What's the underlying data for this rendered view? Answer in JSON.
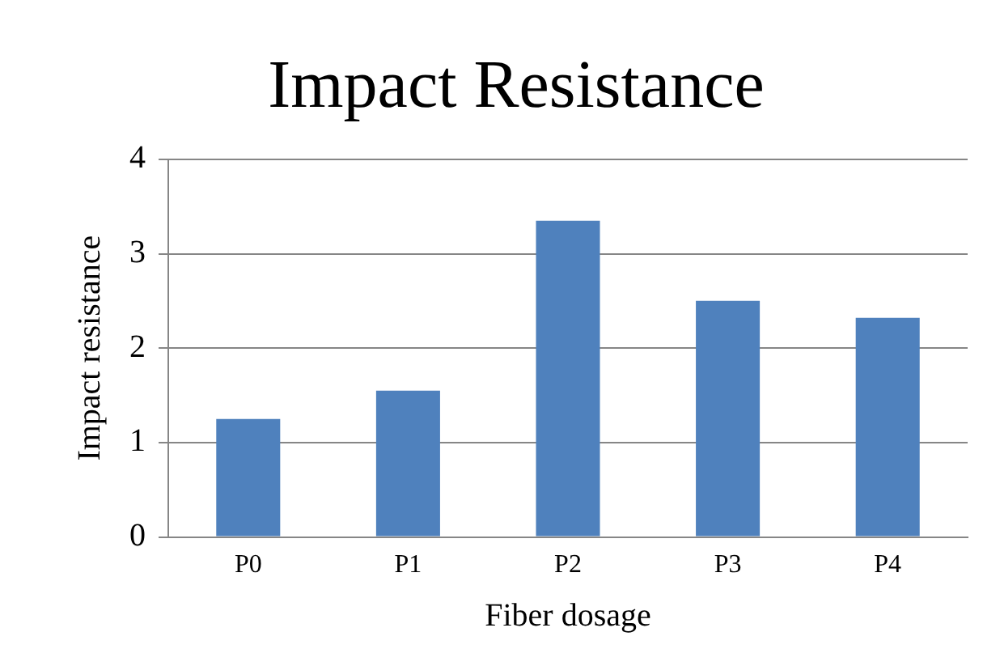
{
  "chart_data": {
    "type": "bar",
    "title": "Impact Resistance",
    "xlabel": "Fiber dosage",
    "ylabel": "Impact resistance",
    "categories": [
      "P0",
      "P1",
      "P2",
      "P3",
      "P4"
    ],
    "values": [
      1.25,
      1.55,
      3.35,
      2.5,
      2.32
    ],
    "color": "#4f81bd",
    "ylim": [
      0,
      4
    ],
    "yticks": [
      0,
      1,
      2,
      3,
      4
    ],
    "grid": "y",
    "legend": false
  }
}
